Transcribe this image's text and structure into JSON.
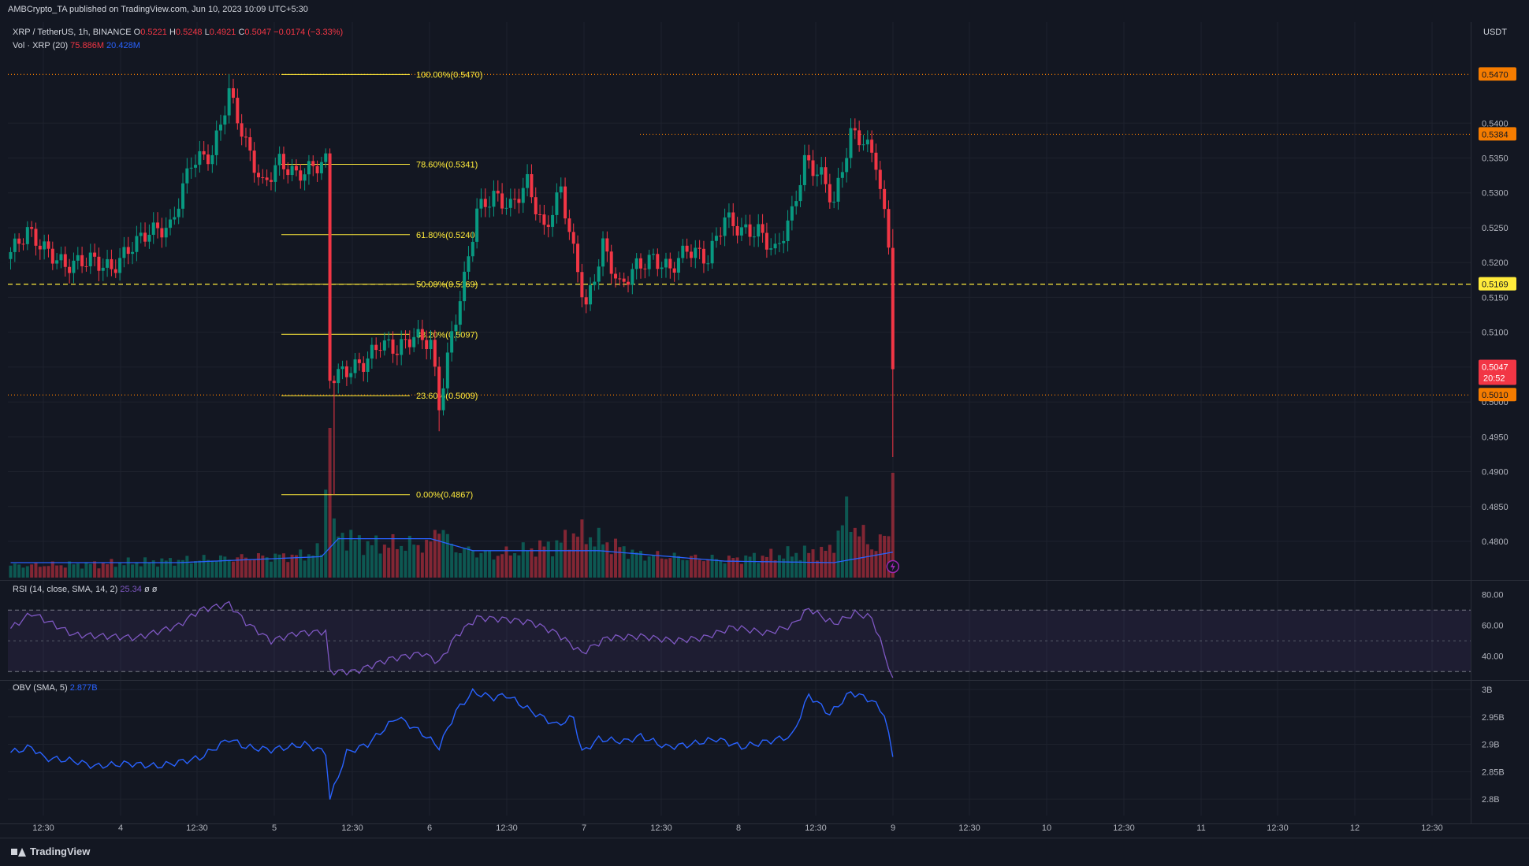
{
  "header": {
    "published": "AMBCrypto_TA published on TradingView.com, Jun 10, 2023 10:09 UTC+5:30",
    "symbol": "XRP / TetherUS, 1h, BINANCE",
    "o_label": "O",
    "o": "0.5221",
    "h_label": "H",
    "h": "0.5248",
    "l_label": "L",
    "l": "0.4921",
    "c_label": "C",
    "c": "0.5047",
    "change": "−0.0174 (−3.33%)",
    "vol_label": "Vol · XRP (20)",
    "vol_value": "75.886M",
    "vol_ma": "20.428M",
    "currency": "USDT"
  },
  "rsi_header": {
    "label": "RSI (14, close, SMA, 14, 2)",
    "value": "25.34",
    "extra1": "ø",
    "extra2": "ø"
  },
  "obv_header": {
    "label": "OBV (SMA, 5)",
    "value": "2.877B"
  },
  "price_labels": [
    {
      "text": "0.5470",
      "price": 0.547,
      "bg": "#f57c00",
      "fg": "#131722"
    },
    {
      "text": "0.5384",
      "price": 0.5384,
      "bg": "#f57c00",
      "fg": "#131722"
    },
    {
      "text": "0.5169",
      "price": 0.5169,
      "bg": "#ffeb3b",
      "fg": "#131722"
    },
    {
      "text": "0.5010",
      "price": 0.501,
      "bg": "#f57c00",
      "fg": "#131722"
    }
  ],
  "current_price": {
    "text": "0.5047",
    "countdown": "20:52",
    "price": 0.5047,
    "bg": "#f23645"
  },
  "watermark": "TradingView",
  "colors": {
    "up": "#089981",
    "down": "#f23645",
    "fib": "#ffeb3b",
    "horiz": "#f57c00",
    "rsi": "#7e57c2",
    "obv": "#2962ff",
    "grid": "#1e222d",
    "text": "#b2b5be"
  },
  "chart_data": [
    {
      "type": "candlestick",
      "title": "XRP / TetherUS, 1h, BINANCE",
      "ylim": [
        0.4748,
        0.5545
      ],
      "y_ticks": [
        0.48,
        0.485,
        0.49,
        0.495,
        0.5,
        0.505,
        0.51,
        0.515,
        0.52,
        0.525,
        0.53,
        0.535,
        0.54
      ],
      "y_tick_labels": [
        "0.4800",
        "0.4850",
        "0.4900",
        "0.4950",
        "0.5000",
        "0.5050",
        "0.5100",
        "0.5150",
        "0.5200",
        "0.5250",
        "0.5300",
        "0.5350",
        "0.5400"
      ],
      "x_ticks": [
        "12:30",
        "4",
        "12:30",
        "5",
        "12:30",
        "6",
        "12:30",
        "7",
        "12:30",
        "8",
        "12:30",
        "9",
        "12:30",
        "10",
        "12:30",
        "11",
        "12:30",
        "12",
        "12:30"
      ],
      "anchors": [
        {
          "i": 0,
          "p": 0.5215
        },
        {
          "i": 4,
          "p": 0.5245
        },
        {
          "i": 8,
          "p": 0.522
        },
        {
          "i": 13,
          "p": 0.5195
        },
        {
          "i": 19,
          "p": 0.5205
        },
        {
          "i": 24,
          "p": 0.519
        },
        {
          "i": 29,
          "p": 0.5225
        },
        {
          "i": 33,
          "p": 0.5245
        },
        {
          "i": 38,
          "p": 0.525
        },
        {
          "i": 43,
          "p": 0.5345
        },
        {
          "i": 48,
          "p": 0.5355
        },
        {
          "i": 52,
          "p": 0.5445
        },
        {
          "i": 56,
          "p": 0.537
        },
        {
          "i": 60,
          "p": 0.531
        },
        {
          "i": 64,
          "p": 0.5345
        },
        {
          "i": 68,
          "p": 0.5325
        },
        {
          "i": 73,
          "p": 0.534
        },
        {
          "i": 75,
          "p": 0.5345
        },
        {
          "i": 76,
          "p": 0.5035
        },
        {
          "i": 80,
          "p": 0.5045
        },
        {
          "i": 84,
          "p": 0.5055
        },
        {
          "i": 88,
          "p": 0.5085
        },
        {
          "i": 92,
          "p": 0.5075
        },
        {
          "i": 96,
          "p": 0.5095
        },
        {
          "i": 100,
          "p": 0.5085
        },
        {
          "i": 102,
          "p": 0.4995
        },
        {
          "i": 105,
          "p": 0.5095
        },
        {
          "i": 108,
          "p": 0.5175
        },
        {
          "i": 111,
          "p": 0.5275
        },
        {
          "i": 115,
          "p": 0.5295
        },
        {
          "i": 119,
          "p": 0.528
        },
        {
          "i": 123,
          "p": 0.5315
        },
        {
          "i": 127,
          "p": 0.5245
        },
        {
          "i": 131,
          "p": 0.5305
        },
        {
          "i": 134,
          "p": 0.5215
        },
        {
          "i": 137,
          "p": 0.5135
        },
        {
          "i": 141,
          "p": 0.5225
        },
        {
          "i": 145,
          "p": 0.5165
        },
        {
          "i": 149,
          "p": 0.5195
        },
        {
          "i": 153,
          "p": 0.5205
        },
        {
          "i": 157,
          "p": 0.519
        },
        {
          "i": 161,
          "p": 0.522
        },
        {
          "i": 166,
          "p": 0.5205
        },
        {
          "i": 170,
          "p": 0.5265
        },
        {
          "i": 174,
          "p": 0.5245
        },
        {
          "i": 178,
          "p": 0.5245
        },
        {
          "i": 182,
          "p": 0.5215
        },
        {
          "i": 186,
          "p": 0.527
        },
        {
          "i": 189,
          "p": 0.5345
        },
        {
          "i": 193,
          "p": 0.5325
        },
        {
          "i": 196,
          "p": 0.5285
        },
        {
          "i": 200,
          "p": 0.5385
        },
        {
          "i": 203,
          "p": 0.5375
        },
        {
          "i": 206,
          "p": 0.5345
        },
        {
          "i": 208,
          "p": 0.5265
        },
        {
          "i": 209,
          "p": 0.5225
        },
        {
          "i": 210,
          "p": 0.5047
        }
      ],
      "last_candle": {
        "o": 0.5221,
        "h": 0.5248,
        "l": 0.4921,
        "c": 0.5047
      },
      "fibonacci": [
        {
          "label": "100.00%(0.5470)",
          "price": 0.547
        },
        {
          "label": "78.60%(0.5341)",
          "price": 0.5341
        },
        {
          "label": "61.80%(0.5240)",
          "price": 0.524
        },
        {
          "label": "50.00%(0.5169)",
          "price": 0.5169
        },
        {
          "label": "38.20%(0.5097)",
          "price": 0.5097
        },
        {
          "label": "23.60%(0.5009)",
          "price": 0.5009
        },
        {
          "label": "0.00%(0.4867)",
          "price": 0.4867
        }
      ],
      "horizontal_lines": [
        {
          "price": 0.547,
          "style": "dotted",
          "color": "#f57c00"
        },
        {
          "price": 0.5384,
          "style": "dotted",
          "color": "#f57c00"
        },
        {
          "price": 0.5169,
          "style": "dashed",
          "color": "#ffeb3b"
        },
        {
          "price": 0.501,
          "style": "dotted",
          "color": "#f57c00"
        }
      ]
    },
    {
      "type": "bar",
      "title": "Vol · XRP (20)",
      "anchors": [
        {
          "i": 0,
          "v": 8
        },
        {
          "i": 20,
          "v": 9
        },
        {
          "i": 45,
          "v": 12
        },
        {
          "i": 70,
          "v": 15
        },
        {
          "i": 74,
          "v": 18
        },
        {
          "i": 76,
          "v": 100
        },
        {
          "i": 77,
          "v": 30
        },
        {
          "i": 85,
          "v": 22
        },
        {
          "i": 100,
          "v": 22
        },
        {
          "i": 102,
          "v": 38
        },
        {
          "i": 105,
          "v": 20
        },
        {
          "i": 115,
          "v": 15
        },
        {
          "i": 130,
          "v": 22
        },
        {
          "i": 135,
          "v": 30
        },
        {
          "i": 150,
          "v": 15
        },
        {
          "i": 170,
          "v": 12
        },
        {
          "i": 195,
          "v": 18
        },
        {
          "i": 199,
          "v": 42
        },
        {
          "i": 205,
          "v": 20
        },
        {
          "i": 209,
          "v": 28
        },
        {
          "i": 210,
          "v": 70
        }
      ],
      "ma_anchors": [
        {
          "i": 0,
          "v": 10
        },
        {
          "i": 40,
          "v": 10
        },
        {
          "i": 74,
          "v": 14
        },
        {
          "i": 78,
          "v": 26
        },
        {
          "i": 100,
          "v": 26
        },
        {
          "i": 110,
          "v": 18
        },
        {
          "i": 140,
          "v": 18
        },
        {
          "i": 170,
          "v": 11
        },
        {
          "i": 196,
          "v": 10
        },
        {
          "i": 210,
          "v": 17
        }
      ]
    },
    {
      "type": "line",
      "title": "RSI (14, close, SMA, 14, 2)",
      "ylim": [
        26,
        86
      ],
      "y_ticks": [
        40,
        60,
        80
      ],
      "y_tick_labels": [
        "40.00",
        "60.00",
        "80.00"
      ],
      "band": [
        30,
        70
      ],
      "midline": 50,
      "anchors": [
        {
          "i": 0,
          "v": 58
        },
        {
          "i": 5,
          "v": 68
        },
        {
          "i": 15,
          "v": 54
        },
        {
          "i": 30,
          "v": 52
        },
        {
          "i": 40,
          "v": 60
        },
        {
          "i": 45,
          "v": 70
        },
        {
          "i": 52,
          "v": 74
        },
        {
          "i": 56,
          "v": 62
        },
        {
          "i": 62,
          "v": 50
        },
        {
          "i": 68,
          "v": 55
        },
        {
          "i": 75,
          "v": 56
        },
        {
          "i": 76,
          "v": 30
        },
        {
          "i": 82,
          "v": 30
        },
        {
          "i": 90,
          "v": 38
        },
        {
          "i": 98,
          "v": 42
        },
        {
          "i": 102,
          "v": 36
        },
        {
          "i": 106,
          "v": 53
        },
        {
          "i": 111,
          "v": 65
        },
        {
          "i": 118,
          "v": 64
        },
        {
          "i": 124,
          "v": 62
        },
        {
          "i": 130,
          "v": 55
        },
        {
          "i": 136,
          "v": 42
        },
        {
          "i": 142,
          "v": 52
        },
        {
          "i": 150,
          "v": 53
        },
        {
          "i": 158,
          "v": 50
        },
        {
          "i": 165,
          "v": 52
        },
        {
          "i": 172,
          "v": 59
        },
        {
          "i": 180,
          "v": 55
        },
        {
          "i": 186,
          "v": 60
        },
        {
          "i": 190,
          "v": 71
        },
        {
          "i": 196,
          "v": 61
        },
        {
          "i": 201,
          "v": 68
        },
        {
          "i": 205,
          "v": 65
        },
        {
          "i": 207,
          "v": 50
        },
        {
          "i": 210,
          "v": 25.34
        }
      ]
    },
    {
      "type": "line",
      "title": "OBV (SMA, 5)",
      "ylim": [
        2.77,
        3.01
      ],
      "y_ticks": [
        2.8,
        2.85,
        2.9,
        2.95,
        3.0
      ],
      "y_tick_labels": [
        "2.8B",
        "2.85B",
        "2.9B",
        "2.95B",
        "3B"
      ],
      "anchors": [
        {
          "i": 0,
          "v": 2.885
        },
        {
          "i": 5,
          "v": 2.895
        },
        {
          "i": 8,
          "v": 2.875
        },
        {
          "i": 15,
          "v": 2.87
        },
        {
          "i": 20,
          "v": 2.86
        },
        {
          "i": 28,
          "v": 2.865
        },
        {
          "i": 35,
          "v": 2.86
        },
        {
          "i": 45,
          "v": 2.875
        },
        {
          "i": 52,
          "v": 2.91
        },
        {
          "i": 56,
          "v": 2.895
        },
        {
          "i": 62,
          "v": 2.89
        },
        {
          "i": 70,
          "v": 2.9
        },
        {
          "i": 75,
          "v": 2.885
        },
        {
          "i": 76,
          "v": 2.8
        },
        {
          "i": 80,
          "v": 2.885
        },
        {
          "i": 85,
          "v": 2.9
        },
        {
          "i": 92,
          "v": 2.95
        },
        {
          "i": 98,
          "v": 2.92
        },
        {
          "i": 102,
          "v": 2.895
        },
        {
          "i": 106,
          "v": 2.96
        },
        {
          "i": 110,
          "v": 2.995
        },
        {
          "i": 115,
          "v": 2.985
        },
        {
          "i": 118,
          "v": 2.99
        },
        {
          "i": 124,
          "v": 2.96
        },
        {
          "i": 130,
          "v": 2.935
        },
        {
          "i": 134,
          "v": 2.95
        },
        {
          "i": 136,
          "v": 2.885
        },
        {
          "i": 140,
          "v": 2.91
        },
        {
          "i": 146,
          "v": 2.905
        },
        {
          "i": 150,
          "v": 2.915
        },
        {
          "i": 156,
          "v": 2.895
        },
        {
          "i": 162,
          "v": 2.9
        },
        {
          "i": 168,
          "v": 2.91
        },
        {
          "i": 174,
          "v": 2.895
        },
        {
          "i": 180,
          "v": 2.905
        },
        {
          "i": 186,
          "v": 2.915
        },
        {
          "i": 190,
          "v": 2.99
        },
        {
          "i": 195,
          "v": 2.955
        },
        {
          "i": 200,
          "v": 2.995
        },
        {
          "i": 205,
          "v": 2.98
        },
        {
          "i": 208,
          "v": 2.955
        },
        {
          "i": 210,
          "v": 2.877
        }
      ]
    }
  ]
}
